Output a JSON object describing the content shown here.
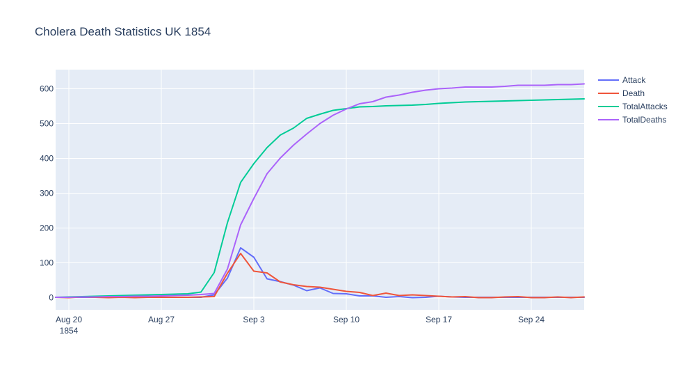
{
  "chart_data": {
    "type": "line",
    "title": "Cholera Death Statistics UK 1854",
    "xlabel": "",
    "ylabel": "",
    "x_start_date": "1854-08-19",
    "x_range_days": [
      0,
      40
    ],
    "ylim": [
      -35,
      655
    ],
    "y_ticks": [
      0,
      100,
      200,
      300,
      400,
      500,
      600
    ],
    "x_ticks": [
      {
        "day": 1,
        "label": "Aug 20",
        "sublabel": "1854"
      },
      {
        "day": 8,
        "label": "Aug 27",
        "sublabel": ""
      },
      {
        "day": 15,
        "label": "Sep 3",
        "sublabel": ""
      },
      {
        "day": 22,
        "label": "Sep 10",
        "sublabel": ""
      },
      {
        "day": 29,
        "label": "Sep 17",
        "sublabel": ""
      },
      {
        "day": 36,
        "label": "Sep 24",
        "sublabel": ""
      }
    ],
    "grid": true,
    "legend_position": "top-right",
    "series": [
      {
        "name": "Attack",
        "color": "#636efa",
        "values": [
          1,
          1,
          1,
          1,
          1,
          1,
          1,
          1,
          1,
          1,
          1,
          1,
          8,
          56,
          143,
          116,
          54,
          46,
          36,
          20,
          28,
          12,
          11,
          5,
          5,
          1,
          3,
          0,
          1,
          4,
          2,
          1,
          1,
          1,
          1,
          1,
          1,
          1,
          1,
          1,
          1
        ]
      },
      {
        "name": "Death",
        "color": "#ef553b",
        "values": [
          1,
          0,
          2,
          1,
          0,
          1,
          0,
          1,
          1,
          1,
          1,
          2,
          3,
          70,
          127,
          76,
          71,
          45,
          37,
          32,
          30,
          24,
          18,
          15,
          6,
          13,
          6,
          8,
          6,
          4,
          2,
          3,
          0,
          0,
          2,
          3,
          0,
          0,
          2,
          0,
          2
        ]
      },
      {
        "name": "TotalAttacks",
        "color": "#00cc96",
        "values": [
          1,
          2,
          3,
          4,
          5,
          6,
          7,
          8,
          9,
          10,
          11,
          16,
          72,
          215,
          331,
          385,
          431,
          467,
          487,
          515,
          527,
          538,
          543,
          548,
          549,
          551,
          552,
          553,
          555,
          558,
          560,
          562,
          563,
          564,
          565,
          566,
          567,
          568,
          569,
          570,
          571
        ]
      },
      {
        "name": "TotalDeaths",
        "color": "#ab63fa",
        "values": [
          1,
          1,
          2,
          2,
          3,
          3,
          4,
          4,
          5,
          6,
          7,
          9,
          12,
          82,
          209,
          285,
          356,
          401,
          438,
          470,
          500,
          524,
          542,
          557,
          563,
          576,
          582,
          590,
          596,
          600,
          602,
          605,
          605,
          605,
          607,
          610,
          610,
          610,
          612,
          612,
          614
        ]
      }
    ]
  }
}
